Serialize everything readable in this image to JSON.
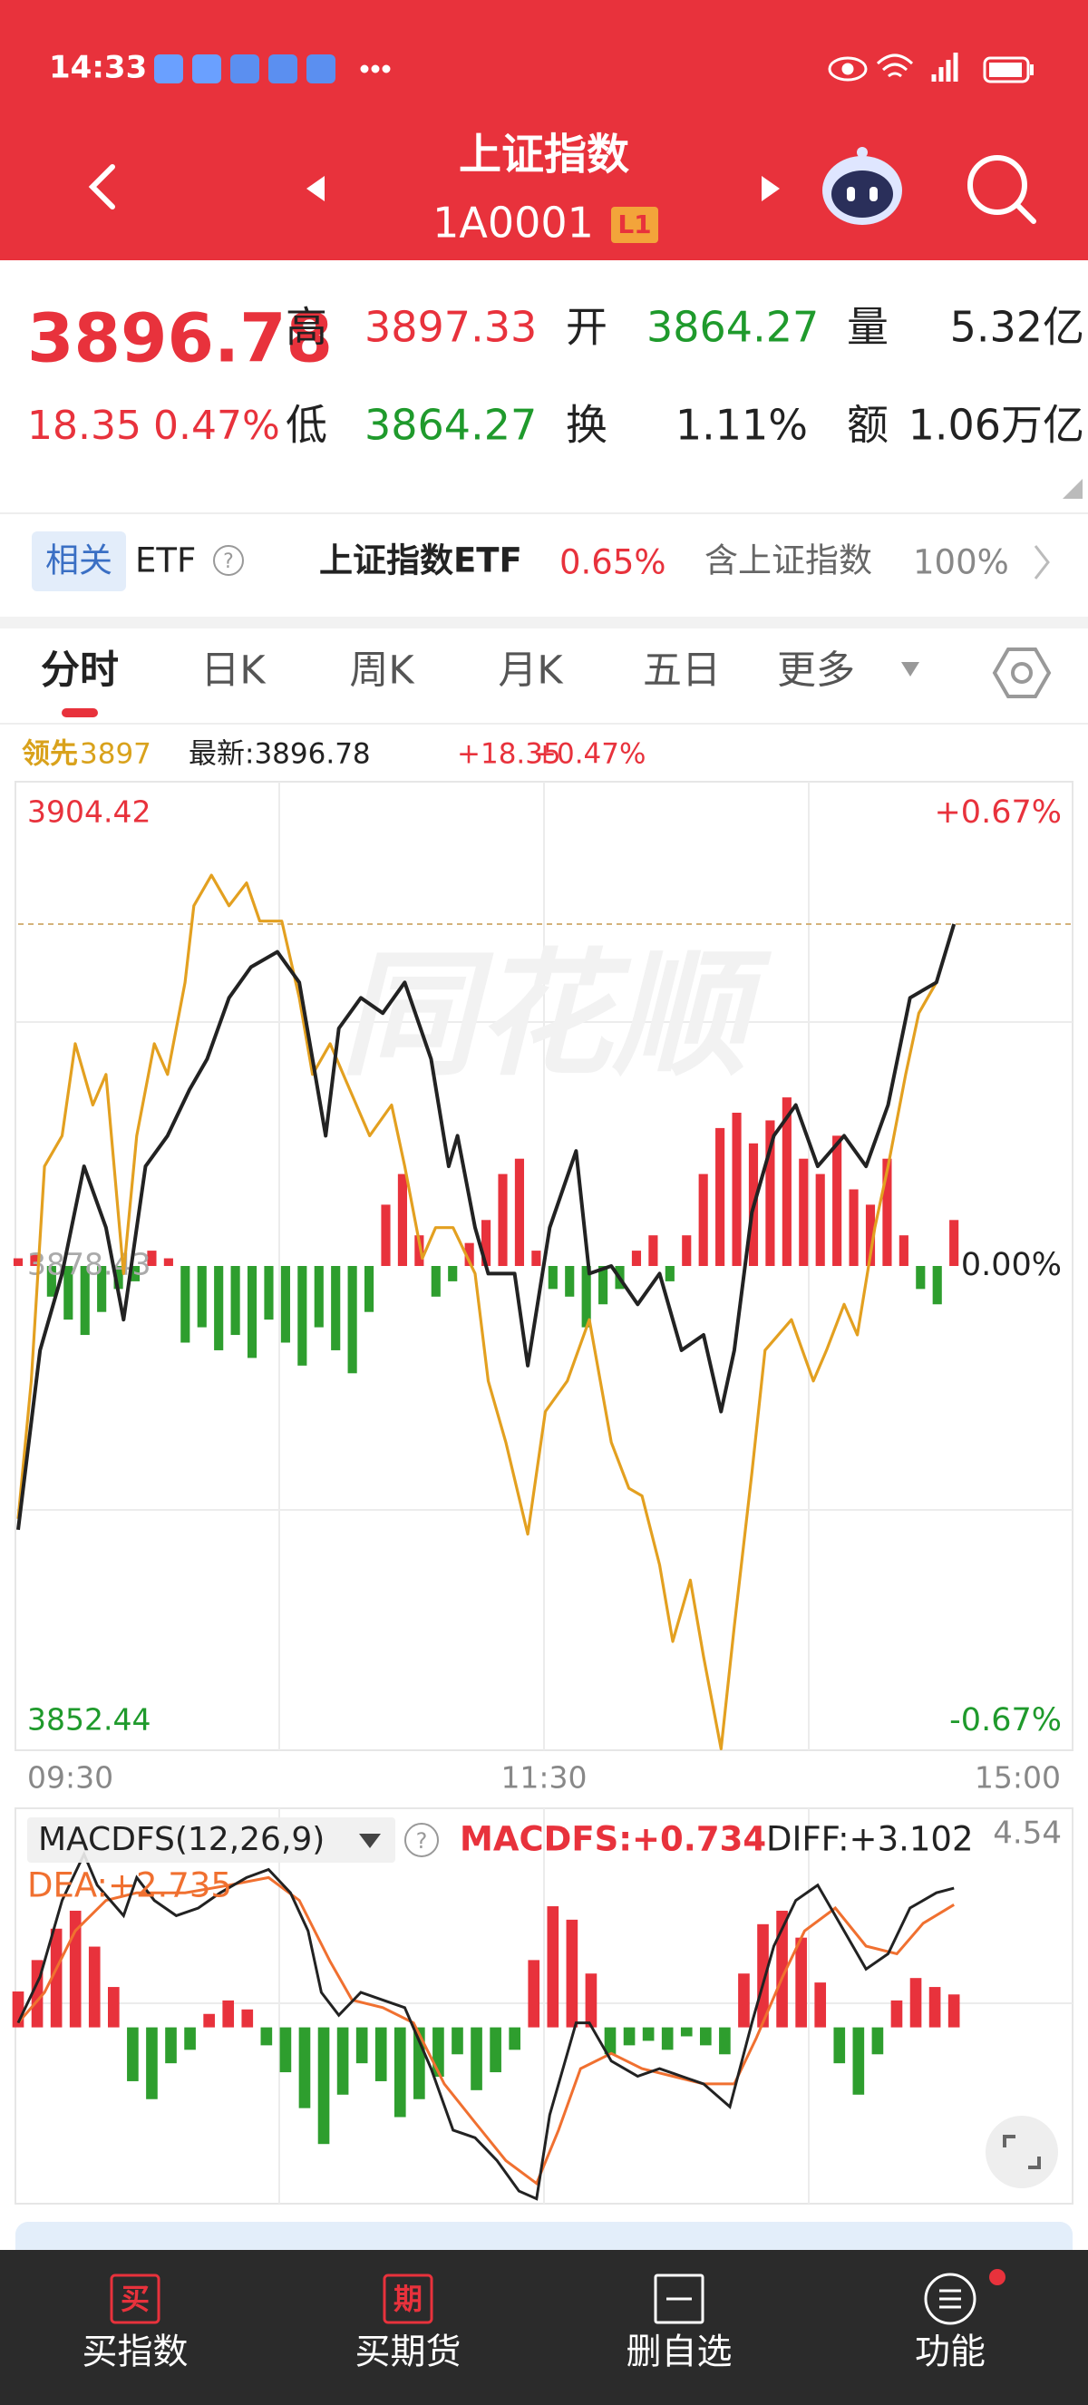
{
  "status_bar": {
    "time": "14:33"
  },
  "header": {
    "title": "上证指数",
    "code": "1A0001",
    "badge": "L1"
  },
  "quote": {
    "price": "3896.78",
    "change": "18.35",
    "change_pct": "0.47%",
    "fields": [
      {
        "label": "高",
        "value": "3897.33"
      },
      {
        "label": "开",
        "value": "3864.27"
      },
      {
        "label": "量",
        "value": "5.32亿"
      },
      {
        "label": "低",
        "value": "3864.27"
      },
      {
        "label": "换",
        "value": "1.11%"
      },
      {
        "label": "额",
        "value": "1.06万亿"
      }
    ]
  },
  "related": {
    "tag": "相关",
    "type": "ETF",
    "etf_name": "上证指数ETF",
    "etf_change": "0.65%",
    "holding_label": "含上证指数",
    "holding_pct": "100%"
  },
  "tabs": [
    "分时",
    "日K",
    "周K",
    "月K",
    "五日",
    "更多"
  ],
  "info": {
    "leader_label": "领先",
    "leader_value": "3897",
    "latest": "最新:3896.78",
    "change": "+18.35",
    "change_pct": "+0.47%"
  },
  "chart": {
    "watermark": "同花顺",
    "price_axis": [
      3904.42,
      3878.43,
      3852.44
    ],
    "pct_axis": [
      "+0.67%",
      "0.00%",
      "-0.67%"
    ],
    "time_axis": [
      "09:30",
      "11:30",
      "15:00"
    ],
    "xlim": [
      0,
      240
    ],
    "series": [
      {
        "color": "#222222",
        "x": [
          0,
          5,
          10,
          15,
          20,
          24,
          29,
          34,
          39,
          43,
          48,
          53,
          59,
          64,
          67,
          70,
          73,
          78,
          83,
          88,
          94,
          98,
          100,
          104,
          107,
          113,
          116,
          121,
          127,
          130,
          135,
          141,
          146,
          151,
          156,
          160,
          163,
          167,
          172,
          177,
          182,
          188,
          193,
          198,
          203,
          209,
          213
        ],
        "values": [
          3864.27,
          3873.91,
          3878.02,
          3883.78,
          3880.49,
          3875.55,
          3883.78,
          3885.42,
          3887.89,
          3889.53,
          3892.82,
          3894.47,
          3895.29,
          3893.65,
          3889.53,
          3885.42,
          3891.18,
          3892.82,
          3892.0,
          3893.65,
          3889.53,
          3883.78,
          3885.42,
          3880.49,
          3878.02,
          3878.02,
          3873.08,
          3880.49,
          3884.6,
          3878.02,
          3878.43,
          3876.37,
          3878.02,
          3873.91,
          3874.73,
          3870.62,
          3873.91,
          3881.31,
          3885.42,
          3887.07,
          3883.78,
          3885.42,
          3883.78,
          3887.07,
          3892.82,
          3893.65,
          3896.78
        ]
      },
      {
        "color": "#e3a020",
        "x": [
          0,
          3,
          6,
          10,
          13,
          17,
          20,
          24,
          27,
          31,
          34,
          38,
          40,
          44,
          48,
          52,
          55,
          60,
          64,
          67,
          71,
          74,
          80,
          85,
          88,
          92,
          95,
          99,
          104,
          107,
          111,
          116,
          120,
          125,
          130,
          135,
          139,
          142,
          146,
          149,
          153,
          156,
          160,
          163,
          167,
          170,
          176,
          181,
          184,
          188,
          191,
          195,
          198,
          202,
          205,
          209,
          213
        ],
        "values": [
          3864.86,
          3872.26,
          3883.78,
          3885.42,
          3890.36,
          3887.07,
          3888.71,
          3878.02,
          3885.42,
          3890.36,
          3888.71,
          3893.65,
          3897.76,
          3899.4,
          3897.76,
          3898.99,
          3896.94,
          3896.94,
          3892.82,
          3888.71,
          3890.36,
          3888.71,
          3885.42,
          3887.07,
          3883.78,
          3878.84,
          3880.49,
          3880.49,
          3878.02,
          3872.26,
          3868.97,
          3864.04,
          3870.62,
          3872.26,
          3875.55,
          3868.97,
          3866.5,
          3866.09,
          3862.39,
          3858.28,
          3861.57,
          3857.46,
          3852.52,
          3859.1,
          3867.33,
          3873.91,
          3875.55,
          3872.26,
          3873.91,
          3876.37,
          3874.73,
          3880.49,
          3883.78,
          3888.71,
          3892.0,
          3893.65,
          3896.78
        ]
      }
    ],
    "breadth": [
      5,
      8,
      -20,
      -35,
      -45,
      -30,
      -15,
      -10,
      10,
      5,
      -50,
      -40,
      -55,
      -45,
      -60,
      -35,
      -50,
      -65,
      -40,
      -55,
      -70,
      -30,
      40,
      60,
      20,
      -20,
      -10,
      15,
      30,
      60,
      70,
      10,
      -15,
      -20,
      -40,
      -25,
      -15,
      10,
      20,
      -10,
      20,
      60,
      90,
      100,
      80,
      95,
      110,
      70,
      60,
      85,
      50,
      40,
      70,
      20,
      -15,
      -25,
      30
    ]
  },
  "macd": {
    "title": "MACDFS(12,26,9)",
    "macd_label": "MACDFS:+0.734",
    "diff_label": "DIFF:+3.102",
    "dea_label": "DEA:+2.735",
    "ylim": [
      -3.93,
      4.54
    ],
    "diff_x": [
      0,
      5,
      10,
      15,
      18,
      24,
      27,
      31,
      36,
      41,
      46,
      52,
      57,
      62,
      66,
      69,
      73,
      78,
      83,
      88,
      94,
      99,
      104,
      109,
      114,
      118,
      121,
      127,
      130,
      135,
      141,
      146,
      151,
      156,
      162,
      167,
      172,
      177,
      182,
      188,
      193,
      198,
      203,
      209,
      213
    ],
    "diff": [
      0.1,
      1.13,
      2.83,
      3.86,
      3.17,
      2.49,
      3.34,
      2.83,
      2.49,
      2.66,
      3.0,
      3.34,
      3.52,
      3.0,
      2.15,
      0.78,
      0.27,
      0.78,
      0.61,
      0.44,
      -0.92,
      -2.29,
      -2.46,
      -2.97,
      -3.65,
      -3.82,
      -1.95,
      0.1,
      0.1,
      -0.75,
      -1.09,
      -0.92,
      -1.09,
      -1.26,
      -1.77,
      0.1,
      1.81,
      2.83,
      3.17,
      2.15,
      1.3,
      1.64,
      2.66,
      3.0,
      3.102
    ],
    "dea_x": [
      0,
      6,
      13,
      20,
      27,
      38,
      48,
      57,
      64,
      71,
      76,
      83,
      90,
      97,
      104,
      111,
      118,
      123,
      128,
      135,
      142,
      149,
      156,
      163,
      168,
      174,
      179,
      186,
      193,
      200,
      206,
      213
    ],
    "dea": [
      0.1,
      0.78,
      2.15,
      2.83,
      3.0,
      3.0,
      3.17,
      3.34,
      2.83,
      1.47,
      0.61,
      0.44,
      0.1,
      -1.26,
      -2.12,
      -2.97,
      -3.48,
      -2.29,
      -0.92,
      -0.58,
      -0.92,
      -1.09,
      -1.26,
      -1.26,
      -0.24,
      1.13,
      2.15,
      2.66,
      1.81,
      1.64,
      2.32,
      2.735
    ],
    "histogram": [
      0.8,
      1.5,
      2.2,
      2.6,
      1.8,
      0.9,
      -1.2,
      -1.6,
      -0.8,
      -0.5,
      0.3,
      0.6,
      0.4,
      -0.4,
      -1.0,
      -1.8,
      -2.6,
      -1.5,
      -0.8,
      -1.2,
      -2.0,
      -1.6,
      -1.1,
      -0.6,
      -1.4,
      -1.0,
      -0.5,
      1.5,
      2.7,
      2.4,
      1.2,
      -0.6,
      -0.4,
      -0.3,
      -0.5,
      -0.2,
      -0.4,
      -0.6,
      1.2,
      2.3,
      2.6,
      2.0,
      1.0,
      -0.8,
      -1.5,
      -0.6,
      0.6,
      1.1,
      0.9,
      0.734
    ]
  },
  "bottom_nav": [
    {
      "icon": "买",
      "label": "买指数"
    },
    {
      "icon": "期",
      "label": "买期货"
    },
    {
      "label": "删自选"
    },
    {
      "label": "功能"
    }
  ]
}
